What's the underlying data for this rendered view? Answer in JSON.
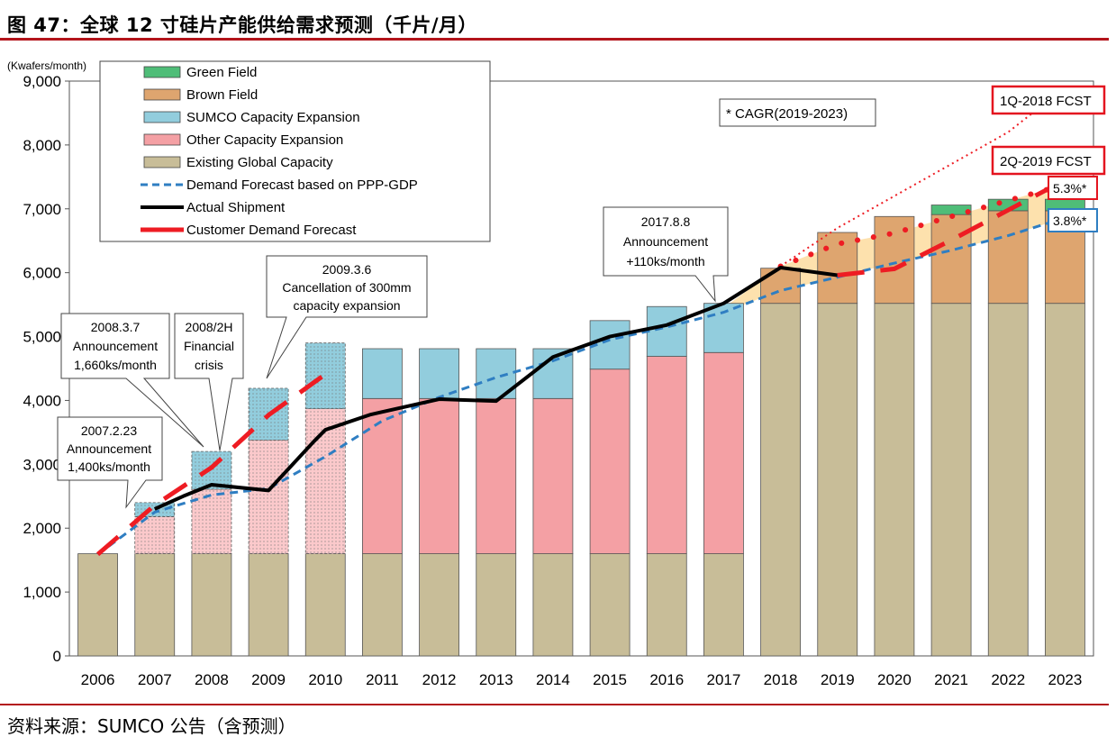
{
  "header": {
    "title": "图 47：全球 12 寸硅片产能供给需求预测（千片/月）"
  },
  "footer": {
    "source": "资料来源：SUMCO 公告（含预测）"
  },
  "colors": {
    "existing": "#c8bd98",
    "other": "#f4a0a4",
    "other_light": "#fbc9cb",
    "sumco": "#92cddd",
    "brown": "#dea56f",
    "green": "#4fbd78",
    "actual": "#000000",
    "customer": "#ee1c23",
    "ppp": "#2f7ec2",
    "band": "#fcc96a",
    "callout_red": "#e4141f",
    "callout_blue": "#2f7ec2"
  },
  "chart_data": {
    "type": "bar",
    "stacked": true,
    "unit_label": "(Kwafers/month)",
    "ylim": [
      0,
      9000
    ],
    "yticks": [
      0,
      1000,
      2000,
      3000,
      4000,
      5000,
      6000,
      7000,
      8000,
      9000
    ],
    "ytick_labels": [
      "0",
      "1,000",
      "2,000",
      "3,000",
      "4,000",
      "5,000",
      "6,000",
      "7,000",
      "8,000",
      "9,000"
    ],
    "categories": [
      "2006",
      "2007",
      "2008",
      "2009",
      "2010",
      "2011",
      "2012",
      "2013",
      "2014",
      "2015",
      "2016",
      "2017",
      "2018",
      "2019",
      "2020",
      "2021",
      "2022",
      "2023"
    ],
    "series": [
      {
        "name": "Existing Global Capacity",
        "key": "existing",
        "values": [
          1600,
          1600,
          1600,
          1600,
          1600,
          1600,
          1600,
          1600,
          1600,
          1600,
          1600,
          1600,
          5520,
          5520,
          5520,
          5520,
          5520,
          5520
        ]
      },
      {
        "name": "Other Capacity Expansion",
        "key": "other",
        "values": [
          0,
          580,
          1010,
          1780,
          2270,
          2430,
          2430,
          2430,
          2430,
          2890,
          3090,
          3150,
          0,
          0,
          0,
          0,
          0,
          0
        ]
      },
      {
        "name": "SUMCO Capacity Expansion",
        "key": "sumco",
        "values": [
          0,
          220,
          590,
          810,
          1030,
          780,
          780,
          780,
          780,
          760,
          780,
          770,
          0,
          0,
          0,
          0,
          0,
          0
        ]
      },
      {
        "name": "Brown Field",
        "key": "brown",
        "values": [
          0,
          0,
          0,
          0,
          0,
          0,
          0,
          0,
          0,
          0,
          0,
          0,
          550,
          1110,
          1360,
          1390,
          1450,
          1450
        ]
      },
      {
        "name": "Green Field",
        "key": "green",
        "values": [
          0,
          0,
          0,
          0,
          0,
          0,
          0,
          0,
          0,
          0,
          0,
          0,
          0,
          0,
          0,
          150,
          180,
          180
        ]
      }
    ],
    "hatched_categories": [
      "2007",
      "2008",
      "2009",
      "2010"
    ],
    "lines": [
      {
        "name": "Actual Shipment",
        "key": "actual",
        "points": [
          [
            2007,
            2300
          ],
          [
            2007.5,
            2500
          ],
          [
            2008,
            2680
          ],
          [
            2009,
            2590
          ],
          [
            2009.8,
            3360
          ],
          [
            2010,
            3540
          ],
          [
            2010.8,
            3780
          ],
          [
            2011,
            3820
          ],
          [
            2012,
            4020
          ],
          [
            2013,
            3990
          ],
          [
            2014,
            4680
          ],
          [
            2015,
            5000
          ],
          [
            2016,
            5180
          ],
          [
            2017,
            5520
          ],
          [
            2018,
            6080
          ],
          [
            2019,
            5960
          ]
        ]
      },
      {
        "name": "Customer Demand Forecast",
        "key": "customer",
        "points": [
          [
            2006,
            1590
          ],
          [
            2007,
            2360
          ],
          [
            2008,
            2950
          ],
          [
            2009,
            3770
          ],
          [
            2010,
            4410
          ]
        ],
        "points_forecast": [
          [
            2019,
            5960
          ],
          [
            2020,
            6060
          ],
          [
            2021,
            6510
          ],
          [
            2022,
            6980
          ],
          [
            2023,
            7450
          ]
        ]
      },
      {
        "name": "Demand Forecast based on PPP-GDP",
        "key": "ppp",
        "points": [
          [
            2006,
            1590
          ],
          [
            2007,
            2250
          ],
          [
            2008,
            2520
          ],
          [
            2009,
            2620
          ],
          [
            2010,
            3120
          ],
          [
            2011,
            3680
          ],
          [
            2012,
            4050
          ],
          [
            2013,
            4360
          ],
          [
            2014,
            4620
          ],
          [
            2015,
            4950
          ],
          [
            2016,
            5150
          ],
          [
            2017,
            5380
          ],
          [
            2018,
            5720
          ],
          [
            2019,
            5930
          ],
          [
            2020,
            6150
          ],
          [
            2021,
            6350
          ],
          [
            2022,
            6580
          ],
          [
            2023,
            6860
          ]
        ]
      },
      {
        "name": "1Q-2018 FCST",
        "key": "fcst1q",
        "points": [
          [
            2018,
            6100
          ],
          [
            2019,
            6700
          ],
          [
            2020,
            7200
          ],
          [
            2021,
            7700
          ],
          [
            2022,
            8200
          ],
          [
            2023,
            8900
          ]
        ]
      },
      {
        "name": "2Q-2019 FCST",
        "key": "fcst2q",
        "points": [
          [
            2018,
            6100
          ],
          [
            2019,
            6450
          ],
          [
            2020,
            6620
          ],
          [
            2021,
            6880
          ],
          [
            2022,
            7130
          ],
          [
            2023,
            7380
          ]
        ]
      }
    ],
    "legend": {
      "placement": "top-left",
      "items": [
        {
          "label": "Green Field",
          "key": "green",
          "kind": "box"
        },
        {
          "label": "Brown Field",
          "key": "brown",
          "kind": "box"
        },
        {
          "label": "SUMCO Capacity Expansion",
          "key": "sumco",
          "kind": "box"
        },
        {
          "label": "Other Capacity Expansion",
          "key": "other",
          "kind": "box"
        },
        {
          "label": "Existing Global Capacity",
          "key": "existing",
          "kind": "box"
        },
        {
          "label": "Demand Forecast based on PPP-GDP",
          "key": "ppp",
          "kind": "dash"
        },
        {
          "label": "Actual Shipment",
          "key": "actual",
          "kind": "line"
        },
        {
          "label": "Customer Demand Forecast",
          "key": "customer",
          "kind": "thick"
        }
      ]
    },
    "annotations": {
      "cagr_note": "* CAGR(2019-2023)",
      "fcst_1q": "1Q-2018 FCST",
      "fcst_2q": "2Q-2019 FCST",
      "cagr_high": "5.3%*",
      "cagr_low": "3.8%*",
      "a2007": [
        "2007.2.23",
        "Announcement",
        "1,400ks/month"
      ],
      "a2008": [
        "2008.3.7",
        "Announcement",
        "1,660ks/month"
      ],
      "a2008h": [
        "2008/2H",
        "Financial",
        "crisis"
      ],
      "a2009": [
        "2009.3.6",
        "Cancellation of 300mm",
        "capacity expansion"
      ],
      "a2017": [
        "2017.8.8",
        "Announcement",
        "+110ks/month"
      ]
    }
  }
}
